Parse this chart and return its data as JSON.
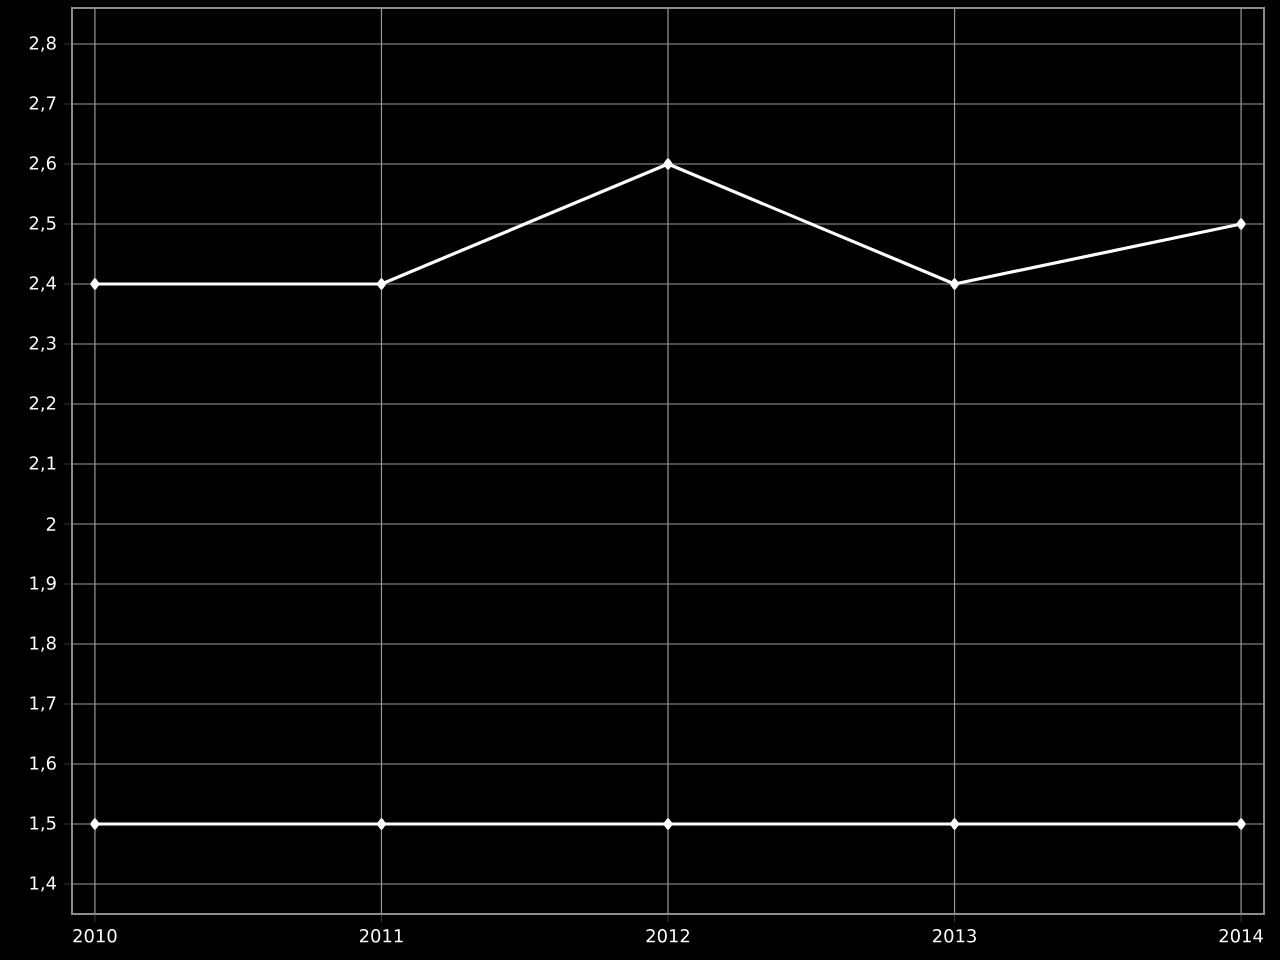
{
  "chart_data": {
    "type": "line",
    "x": [
      2010,
      2011,
      2012,
      2013,
      2014
    ],
    "series": [
      {
        "color": "#ffffff",
        "values": [
          2.4,
          2.4,
          2.6,
          2.4,
          2.5
        ]
      },
      {
        "color": "#ffffff",
        "values": [
          1.5,
          1.5,
          1.5,
          1.5,
          1.5
        ]
      }
    ],
    "xlim": [
      2009.92,
      2014.08
    ],
    "ylim": [
      1.35,
      2.86
    ],
    "xticks": [
      2010,
      2011,
      2012,
      2013,
      2014
    ],
    "yticks": [
      {
        "value": 1.4,
        "label": "1,4"
      },
      {
        "value": 1.5,
        "label": "1,5"
      },
      {
        "value": 1.6,
        "label": "1,6"
      },
      {
        "value": 1.7,
        "label": "1,7"
      },
      {
        "value": 1.8,
        "label": "1,8"
      },
      {
        "value": 1.9,
        "label": "1,9"
      },
      {
        "value": 2,
        "label": "2"
      },
      {
        "value": 2.1,
        "label": "2,1"
      },
      {
        "value": 2.2,
        "label": "2,2"
      },
      {
        "value": 2.3,
        "label": "2,3"
      },
      {
        "value": 2.4,
        "label": "2,4"
      },
      {
        "value": 2.5,
        "label": "2,5"
      },
      {
        "value": 2.6,
        "label": "2,6"
      },
      {
        "value": 2.7,
        "label": "2,7"
      },
      {
        "value": 2.8,
        "label": "2,8"
      }
    ],
    "grid": true,
    "marker": "diamond",
    "line_style": "solid"
  }
}
